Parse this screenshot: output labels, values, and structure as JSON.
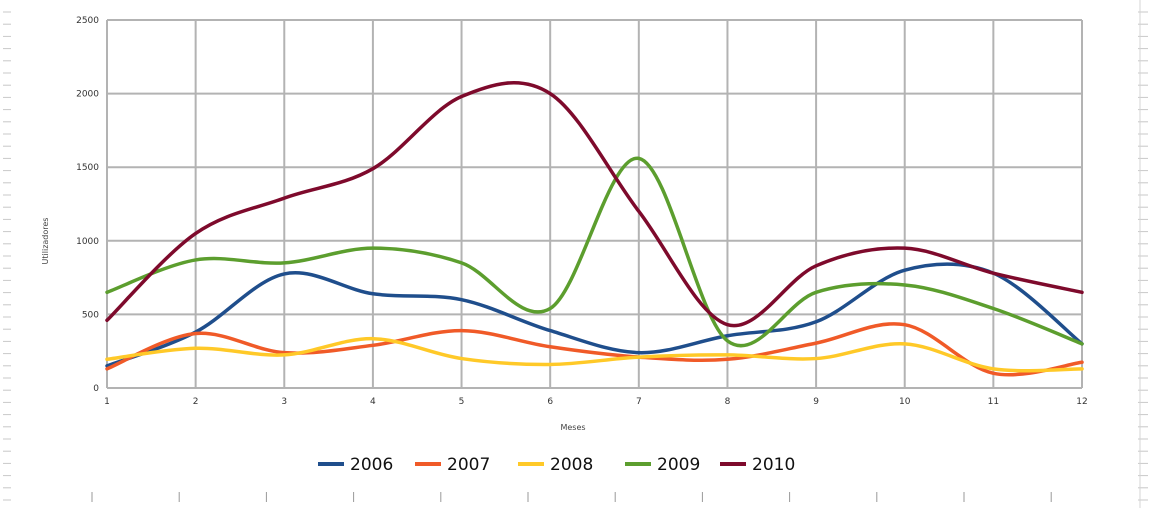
{
  "chart_data": {
    "type": "line",
    "title": "",
    "xlabel": "Meses",
    "ylabel": "Utilizadores",
    "categories": [
      "1",
      "2",
      "3",
      "4",
      "5",
      "6",
      "7",
      "8",
      "9",
      "10",
      "11",
      "12"
    ],
    "xlim": [
      1,
      12
    ],
    "ylim": [
      0,
      2500
    ],
    "yticks": [
      0,
      500,
      1000,
      1500,
      2000,
      2500
    ],
    "grid": true,
    "smooth": true,
    "legend_position": "bottom",
    "series": [
      {
        "name": "2006",
        "color": "#1f4e8c",
        "values": [
          150,
          380,
          775,
          640,
          600,
          390,
          240,
          355,
          450,
          800,
          780,
          300
        ]
      },
      {
        "name": "2007",
        "color": "#f05a28",
        "values": [
          130,
          370,
          240,
          290,
          390,
          280,
          210,
          195,
          305,
          430,
          100,
          175
        ]
      },
      {
        "name": "2008",
        "color": "#ffc928",
        "values": [
          195,
          270,
          225,
          335,
          200,
          160,
          210,
          225,
          200,
          300,
          130,
          130
        ]
      },
      {
        "name": "2009",
        "color": "#5c9e2e",
        "values": [
          650,
          870,
          850,
          950,
          850,
          540,
          1560,
          320,
          650,
          700,
          540,
          300
        ]
      },
      {
        "name": "2010",
        "color": "#7e0a2c",
        "values": [
          460,
          1050,
          1290,
          1490,
          1980,
          2000,
          1200,
          430,
          830,
          950,
          780,
          650
        ]
      }
    ]
  }
}
